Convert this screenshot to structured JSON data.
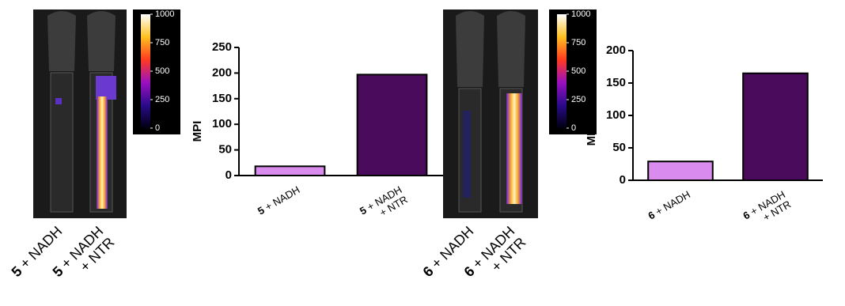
{
  "images": [
    {
      "labels": [
        "5 + NADH",
        "5 + NADH + NTR"
      ],
      "colorbar": {
        "lim": [
          0,
          1000
        ],
        "ticks": [
          0,
          250,
          500,
          750,
          1000
        ]
      }
    },
    {
      "labels": [
        "6 + NADH",
        "6 + NADH + NTR"
      ],
      "colorbar": {
        "lim": [
          0,
          1000
        ],
        "ticks": [
          0,
          250,
          500,
          750,
          1000
        ]
      }
    }
  ],
  "chart_data": [
    {
      "type": "bar",
      "ylabel": "MPI",
      "categories": [
        "5 + NADH",
        "5 + NADH + NTR"
      ],
      "values": [
        18,
        197
      ],
      "colors": [
        "#d98bee",
        "#4b0b5c"
      ],
      "ylim": [
        0,
        250
      ],
      "yticks": [
        0,
        50,
        100,
        150,
        200,
        250
      ]
    },
    {
      "type": "bar",
      "ylabel": "MPI",
      "categories": [
        "6 + NADH",
        "6 + NADH + NTR"
      ],
      "values": [
        29,
        165
      ],
      "colors": [
        "#d98bee",
        "#4b0b5c"
      ],
      "ylim": [
        0,
        200
      ],
      "yticks": [
        0,
        50,
        100,
        150,
        200
      ]
    }
  ]
}
